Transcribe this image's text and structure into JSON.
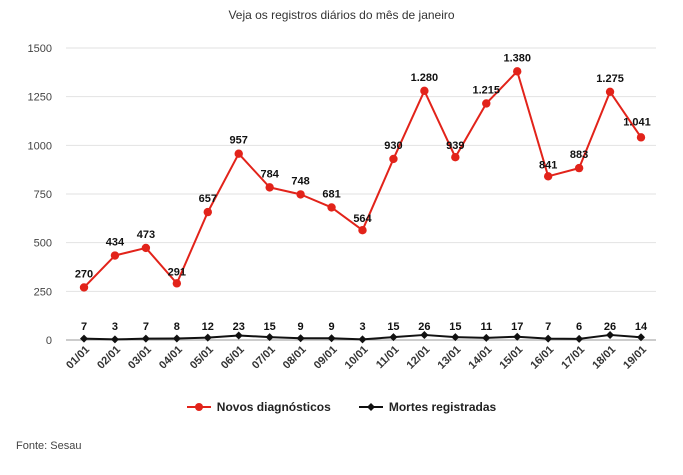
{
  "chart_data": {
    "type": "line",
    "title": "Veja os registros diários do mês de janeiro",
    "categories": [
      "01/01",
      "02/01",
      "03/01",
      "04/01",
      "05/01",
      "06/01",
      "07/01",
      "08/01",
      "09/01",
      "10/01",
      "11/01",
      "12/01",
      "13/01",
      "14/01",
      "15/01",
      "16/01",
      "17/01",
      "18/01",
      "19/01"
    ],
    "ylim": [
      0,
      1500
    ],
    "yticks": [
      "0",
      "250",
      "500",
      "750",
      "1000",
      "1250",
      "1500"
    ],
    "grid": true,
    "legend_position": "bottom",
    "series": [
      {
        "name": "Novos diagnósticos",
        "color": "#e2231a",
        "marker": "circle",
        "values": [
          270,
          434,
          473,
          291,
          657,
          957,
          784,
          748,
          681,
          564,
          930,
          1280,
          939,
          1215,
          1380,
          841,
          883,
          1275,
          1041
        ],
        "labels": [
          "270",
          "434",
          "473",
          "291",
          "657",
          "957",
          "784",
          "748",
          "681",
          "564",
          "930",
          "1.280",
          "939",
          "1.215",
          "1.380",
          "841",
          "883",
          "1.275",
          "1.041"
        ]
      },
      {
        "name": "Mortes registradas",
        "color": "#111111",
        "marker": "diamond",
        "values": [
          7,
          3,
          7,
          8,
          12,
          23,
          15,
          9,
          9,
          3,
          15,
          26,
          15,
          11,
          17,
          7,
          6,
          26,
          14
        ],
        "labels": [
          "7",
          "3",
          "7",
          "8",
          "12",
          "23",
          "15",
          "9",
          "9",
          "3",
          "15",
          "26",
          "15",
          "11",
          "17",
          "7",
          "6",
          "26",
          "14"
        ]
      }
    ]
  },
  "source": "Fonte: Sesau"
}
